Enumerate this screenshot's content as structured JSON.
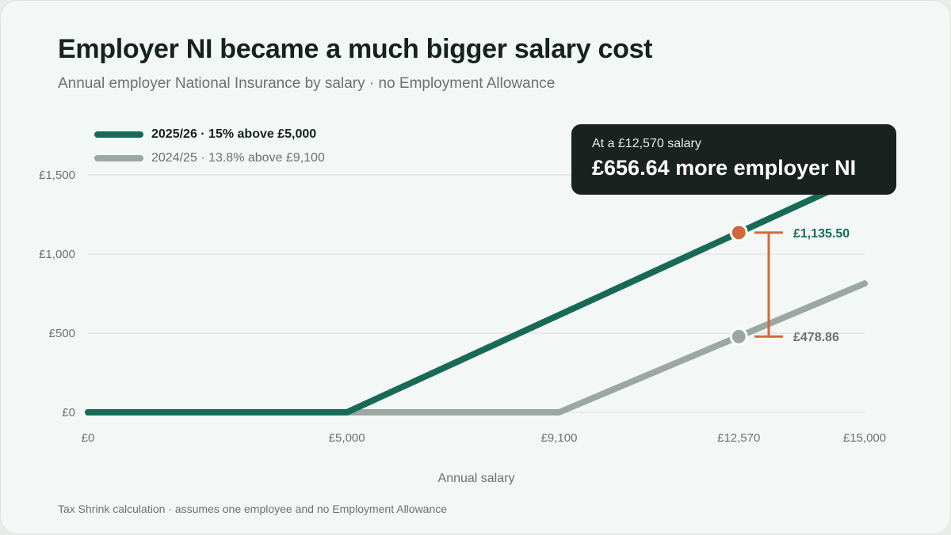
{
  "title": "Employer NI became a much bigger salary cost",
  "subtitle": "Annual employer National Insurance by salary · no Employment Allowance",
  "footnote": "Tax Shrink calculation · assumes one employee and no Employment Allowance",
  "callout": {
    "label": "At a £12,570 salary",
    "value": "£656.64 more employer NI"
  },
  "colors": {
    "series_2025": "#186a57",
    "series_2024": "#9ba8a2",
    "highlight_marker": "#d2683a",
    "gap_bracket": "#d2683a",
    "grid": "#d8dcda"
  },
  "chart_data": {
    "type": "line",
    "xlabel": "Annual salary",
    "ylabel": "",
    "xlim": [
      0,
      15000
    ],
    "ylim": [
      0,
      1500
    ],
    "x_ticks": [
      {
        "value": 0,
        "label": "£0"
      },
      {
        "value": 5000,
        "label": "£5,000"
      },
      {
        "value": 9100,
        "label": "£9,100"
      },
      {
        "value": 12570,
        "label": "£12,570"
      },
      {
        "value": 15000,
        "label": "£15,000"
      }
    ],
    "y_ticks": [
      {
        "value": 0,
        "label": "£0"
      },
      {
        "value": 500,
        "label": "£500"
      },
      {
        "value": 1000,
        "label": "£1,000"
      },
      {
        "value": 1500,
        "label": "£1,500"
      }
    ],
    "grid": true,
    "legend_position": "top-left",
    "series": [
      {
        "name": "2025/26 · 15% above £5,000",
        "color": "#186a57",
        "x": [
          0,
          5000,
          15000
        ],
        "y": [
          0,
          0,
          1500
        ]
      },
      {
        "name": "2024/25 · 13.8% above £9,100",
        "color": "#9ba8a2",
        "x": [
          0,
          9100,
          15000
        ],
        "y": [
          0,
          0,
          814.2
        ]
      }
    ],
    "highlight": {
      "x": 12570,
      "points": [
        {
          "series": 0,
          "y": 1135.5,
          "label": "£1,135.50"
        },
        {
          "series": 1,
          "y": 478.86,
          "label": "£478.86"
        }
      ],
      "difference": 656.64
    }
  }
}
